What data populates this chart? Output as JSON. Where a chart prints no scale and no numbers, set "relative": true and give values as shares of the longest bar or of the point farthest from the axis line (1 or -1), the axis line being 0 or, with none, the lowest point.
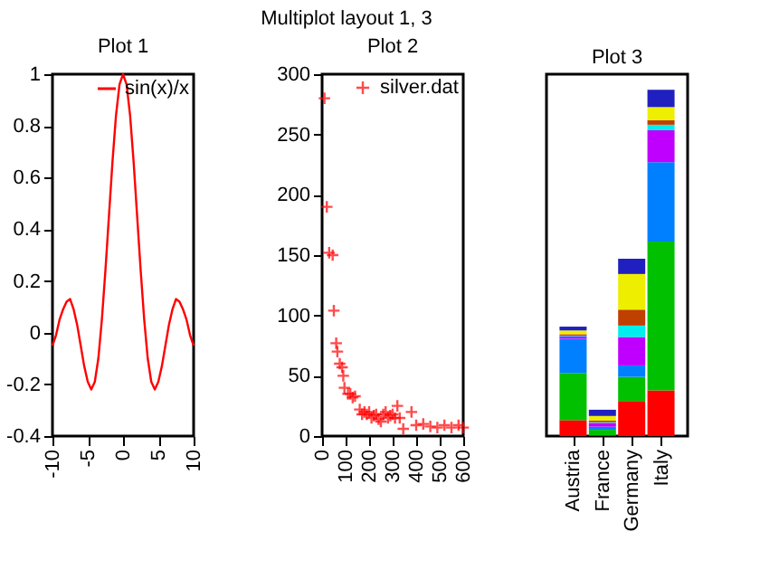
{
  "chart_data": [
    {
      "type": "line",
      "title": "Plot 1",
      "annotations": [
        "Multiplot layout 1, 3"
      ],
      "x": [
        -10,
        -9.5,
        -9,
        -8.5,
        -8,
        -7.5,
        -7,
        -6.5,
        -6,
        -5.5,
        -5,
        -4.5,
        -4,
        -3.5,
        -3,
        -2.5,
        -2,
        -1.5,
        -1,
        -0.5,
        0,
        0.5,
        1,
        1.5,
        2,
        2.5,
        3,
        3.5,
        4,
        4.5,
        5,
        5.5,
        6,
        6.5,
        7,
        7.5,
        8,
        8.5,
        9,
        9.5,
        10
      ],
      "series": [
        {
          "name": "sin(x)/x",
          "color": "#ff0000",
          "values": [
            -0.05,
            -0.01,
            0.05,
            0.09,
            0.12,
            0.13,
            0.09,
            0.03,
            -0.05,
            -0.13,
            -0.19,
            -0.22,
            -0.19,
            -0.1,
            0.05,
            0.24,
            0.45,
            0.66,
            0.84,
            0.96,
            1,
            0.96,
            0.84,
            0.66,
            0.45,
            0.24,
            0.05,
            -0.1,
            -0.19,
            -0.22,
            -0.19,
            -0.13,
            -0.05,
            0.03,
            0.09,
            0.13,
            0.12,
            0.09,
            0.05,
            -0.01,
            -0.05
          ]
        }
      ],
      "xlim": [
        -10,
        10
      ],
      "xticks": [
        -10,
        -5,
        0,
        5,
        10
      ],
      "ylim": [
        -0.4,
        1
      ],
      "yticks": [
        -0.4,
        -0.2,
        {
          "value": 0,
          "label": "0"
        },
        0.2,
        0.4,
        0.6,
        0.8,
        {
          "value": 1,
          "label": "1"
        }
      ],
      "legend": "top right",
      "grid": false
    },
    {
      "type": "scatter",
      "title": "Plot 2",
      "marker": "cross",
      "x": [
        10,
        20,
        30,
        45,
        50,
        60,
        65,
        75,
        85,
        90,
        95,
        110,
        120,
        130,
        140,
        160,
        170,
        180,
        190,
        200,
        210,
        220,
        230,
        240,
        250,
        260,
        270,
        280,
        290,
        300,
        310,
        320,
        330,
        345,
        380,
        400,
        430,
        460,
        490,
        520,
        550,
        580,
        600
      ],
      "series": [
        {
          "name": "silver.dat",
          "color": "#ff0000",
          "values": [
            280,
            190,
            152,
            150,
            104,
            77,
            70,
            60,
            57,
            50,
            40,
            35,
            35,
            32,
            33,
            22,
            18,
            20,
            18,
            20,
            15,
            17,
            18,
            14,
            12,
            18,
            20,
            15,
            17,
            18,
            15,
            25,
            15,
            6,
            20,
            9,
            10,
            8,
            7,
            9,
            7,
            9,
            7
          ]
        }
      ],
      "xlim": [
        0,
        600
      ],
      "xticks": [
        0,
        100,
        200,
        300,
        400,
        500,
        600
      ],
      "ylim": [
        0,
        300
      ],
      "yticks": [
        0,
        50,
        100,
        150,
        200,
        250,
        300
      ],
      "legend": "top right",
      "grid": false
    },
    {
      "type": "bar",
      "title": "Plot 3",
      "stacked": true,
      "relative": true,
      "categories": [
        "Austria",
        "France",
        "Germany",
        "Italy"
      ],
      "series": [
        {
          "color": "#ff0000",
          "values": [
            0.046,
            0.002,
            0.101,
            0.132
          ]
        },
        {
          "color": "#00c000",
          "values": [
            0.136,
            0.016,
            0.07,
            0.43
          ]
        },
        {
          "color": "#0080ff",
          "values": [
            0.099,
            0.009,
            0.033,
            0.229
          ]
        },
        {
          "color": "#c000ff",
          "values": [
            0.007,
            0.011,
            0.082,
            0.092
          ]
        },
        {
          "color": "#00eeee",
          "values": [
            0.002,
            0.002,
            0.033,
            0.016
          ]
        },
        {
          "color": "#c04000",
          "values": [
            0.004,
            0.005,
            0.046,
            0.013
          ]
        },
        {
          "color": "#eeee00",
          "values": [
            0.011,
            0.013,
            0.103,
            0.038
          ]
        },
        {
          "color": "#2020c0",
          "values": [
            0.011,
            0.018,
            0.044,
            0.05
          ]
        }
      ],
      "legend": false,
      "grid": false
    }
  ]
}
